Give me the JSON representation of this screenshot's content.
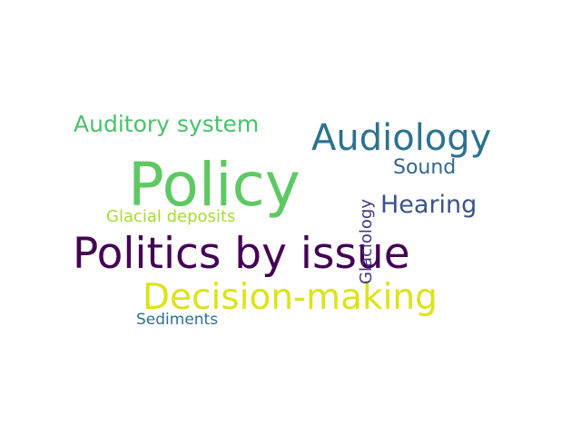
{
  "words": {
    "policy": {
      "text": "Policy",
      "color": "#5ec962"
    },
    "politics": {
      "text": "Politics by issue",
      "color": "#440154"
    },
    "decision": {
      "text": "Decision-making",
      "color": "#dde318"
    },
    "audiology": {
      "text": "Audiology",
      "color": "#2c728e"
    },
    "auditory": {
      "text": "Auditory system",
      "color": "#4ac16d"
    },
    "hearing": {
      "text": "Hearing",
      "color": "#3b528b"
    },
    "sound": {
      "text": "Sound",
      "color": "#31688e"
    },
    "glacial": {
      "text": "Glacial deposits",
      "color": "#a8db34"
    },
    "sediments": {
      "text": "Sediments",
      "color": "#2c728e"
    },
    "glaciology": {
      "text": "Glaciology",
      "color": "#46327e"
    }
  }
}
